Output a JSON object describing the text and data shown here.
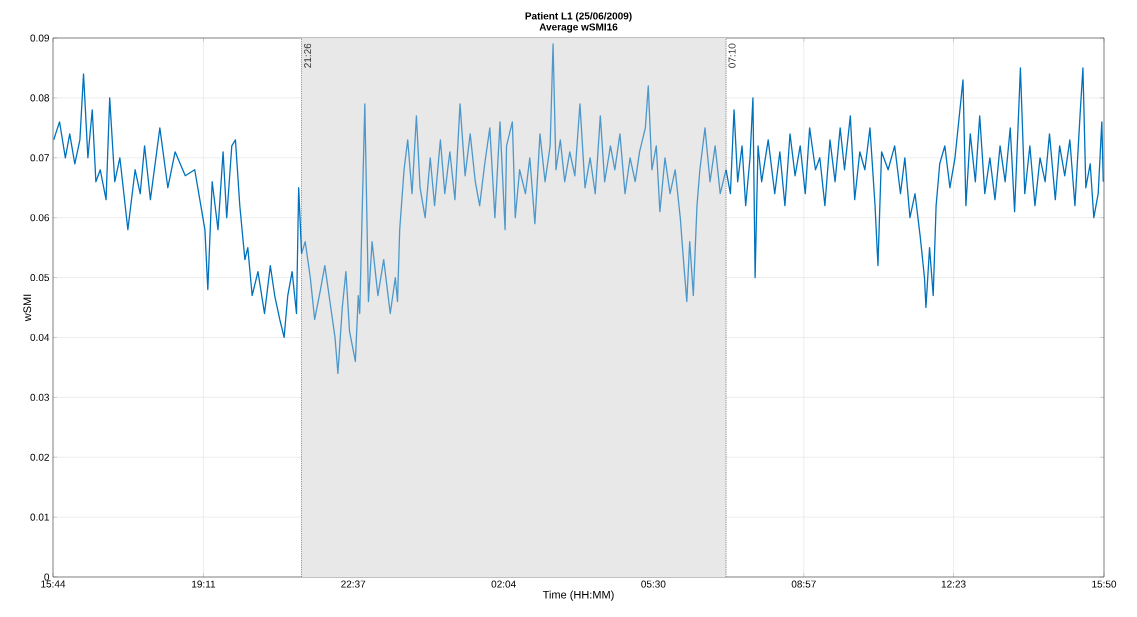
{
  "chart_data": {
    "type": "line",
    "title": "Patient L1 (25/06/2009)",
    "subtitle": "Average wSMI16",
    "xlabel": "Time (HH:MM)",
    "ylabel": "wSMI",
    "xlim": [
      "2009-06-25T15:44",
      "2009-06-26T15:50"
    ],
    "xticks": [
      {
        "value": "2009-06-25T15:44",
        "label": "15:44"
      },
      {
        "value": "2009-06-25T19:11",
        "label": "19:11"
      },
      {
        "value": "2009-06-25T22:37",
        "label": "22:37"
      },
      {
        "value": "2009-06-26T02:04",
        "label": "02:04"
      },
      {
        "value": "2009-06-26T05:30",
        "label": "05:30"
      },
      {
        "value": "2009-06-26T08:57",
        "label": "08:57"
      },
      {
        "value": "2009-06-26T12:23",
        "label": "12:23"
      },
      {
        "value": "2009-06-26T15:50",
        "label": "15:50"
      }
    ],
    "ylim": [
      0,
      0.09
    ],
    "yticks": [
      0,
      0.01,
      0.02,
      0.03,
      0.04,
      0.05,
      0.06,
      0.07,
      0.08,
      0.09
    ],
    "grid": true,
    "bands": [
      {
        "axis": "x",
        "from": "2009-06-25T21:26",
        "to": "2009-06-26T07:10",
        "color": "#e8e8e8"
      }
    ],
    "ref_lines": [
      {
        "axis": "x",
        "value": "2009-06-25T21:26",
        "label": "21:26",
        "color": "#555555",
        "line_style": "dotted"
      },
      {
        "axis": "x",
        "value": "2009-06-26T07:10",
        "label": "07:10",
        "color": "#555555",
        "line_style": "dotted"
      }
    ],
    "series": [
      {
        "color": "#0072bd",
        "x": [
          "2009-06-25T15:45",
          "2009-06-25T15:53",
          "2009-06-25T16:01",
          "2009-06-25T16:07",
          "2009-06-25T16:14",
          "2009-06-25T16:21",
          "2009-06-25T16:26",
          "2009-06-25T16:32",
          "2009-06-25T16:38",
          "2009-06-25T16:43",
          "2009-06-25T16:49",
          "2009-06-25T16:57",
          "2009-06-25T17:02",
          "2009-06-25T17:09",
          "2009-06-25T17:16",
          "2009-06-25T17:27",
          "2009-06-25T17:37",
          "2009-06-25T17:44",
          "2009-06-25T17:50",
          "2009-06-25T17:58",
          "2009-06-25T18:11",
          "2009-06-25T18:22",
          "2009-06-25T18:32",
          "2009-06-25T18:46",
          "2009-06-25T18:59",
          "2009-06-25T19:06",
          "2009-06-25T19:13",
          "2009-06-25T19:17",
          "2009-06-25T19:23",
          "2009-06-25T19:31",
          "2009-06-25T19:38",
          "2009-06-25T19:43",
          "2009-06-25T19:50",
          "2009-06-25T19:55",
          "2009-06-25T20:01",
          "2009-06-25T20:08",
          "2009-06-25T20:12",
          "2009-06-25T20:18",
          "2009-06-25T20:26",
          "2009-06-25T20:35",
          "2009-06-25T20:43",
          "2009-06-25T20:49",
          "2009-06-25T20:56",
          "2009-06-25T21:02",
          "2009-06-25T21:07",
          "2009-06-25T21:13",
          "2009-06-25T21:19",
          "2009-06-25T21:22",
          "2009-06-25T21:26"
        ],
        "values": [
          0.073,
          0.076,
          0.07,
          0.074,
          0.069,
          0.073,
          0.084,
          0.07,
          0.078,
          0.066,
          0.068,
          0.063,
          0.08,
          0.066,
          0.07,
          0.058,
          0.068,
          0.064,
          0.072,
          0.063,
          0.075,
          0.065,
          0.071,
          0.067,
          0.068,
          0.063,
          0.058,
          0.048,
          0.066,
          0.058,
          0.071,
          0.06,
          0.072,
          0.073,
          0.062,
          0.053,
          0.055,
          0.047,
          0.051,
          0.044,
          0.052,
          0.047,
          0.043,
          0.04,
          0.047,
          0.051,
          0.044,
          0.065,
          0.054
        ]
      },
      {
        "color": "#4d98cb",
        "x": [
          "2009-06-25T21:26",
          "2009-06-25T21:31",
          "2009-06-25T21:38",
          "2009-06-25T21:44",
          "2009-06-25T21:52",
          "2009-06-25T21:58",
          "2009-06-25T22:05",
          "2009-06-25T22:12",
          "2009-06-25T22:16",
          "2009-06-25T22:22",
          "2009-06-25T22:27",
          "2009-06-25T22:32",
          "2009-06-25T22:40",
          "2009-06-25T22:44",
          "2009-06-25T22:46",
          "2009-06-25T22:53",
          "2009-06-25T22:58",
          "2009-06-25T23:03",
          "2009-06-25T23:11",
          "2009-06-25T23:19",
          "2009-06-25T23:28",
          "2009-06-25T23:35",
          "2009-06-25T23:38",
          "2009-06-25T23:41",
          "2009-06-25T23:47",
          "2009-06-25T23:52",
          "2009-06-25T23:58",
          "2009-06-26T00:04",
          "2009-06-26T00:09",
          "2009-06-26T00:16",
          "2009-06-26T00:23",
          "2009-06-26T00:29",
          "2009-06-26T00:37",
          "2009-06-26T00:43",
          "2009-06-26T00:50",
          "2009-06-26T00:57",
          "2009-06-26T01:04",
          "2009-06-26T01:11",
          "2009-06-26T01:18",
          "2009-06-26T01:25",
          "2009-06-26T01:31",
          "2009-06-26T01:38",
          "2009-06-26T01:45",
          "2009-06-26T01:52",
          "2009-06-26T01:59",
          "2009-06-26T02:06",
          "2009-06-26T02:08",
          "2009-06-26T02:16",
          "2009-06-26T02:20",
          "2009-06-26T02:26",
          "2009-06-26T02:34",
          "2009-06-26T02:40",
          "2009-06-26T02:47",
          "2009-06-26T02:54",
          "2009-06-26T03:01",
          "2009-06-26T03:08",
          "2009-06-26T03:12",
          "2009-06-26T03:16",
          "2009-06-26T03:22",
          "2009-06-26T03:28",
          "2009-06-26T03:35",
          "2009-06-26T03:42",
          "2009-06-26T03:49",
          "2009-06-26T03:56",
          "2009-06-26T04:03",
          "2009-06-26T04:10",
          "2009-06-26T04:17",
          "2009-06-26T04:23",
          "2009-06-26T04:31",
          "2009-06-26T04:37",
          "2009-06-26T04:44",
          "2009-06-26T04:51",
          "2009-06-26T04:58",
          "2009-06-26T05:05",
          "2009-06-26T05:11",
          "2009-06-26T05:19",
          "2009-06-26T05:23",
          "2009-06-26T05:28",
          "2009-06-26T05:34",
          "2009-06-26T05:39",
          "2009-06-26T05:46",
          "2009-06-26T05:53",
          "2009-06-26T06:00",
          "2009-06-26T06:07",
          "2009-06-26T06:12",
          "2009-06-26T06:16",
          "2009-06-26T06:20",
          "2009-06-26T06:25",
          "2009-06-26T06:30",
          "2009-06-26T06:34",
          "2009-06-26T06:41",
          "2009-06-26T06:48",
          "2009-06-26T06:55",
          "2009-06-26T07:02",
          "2009-06-26T07:10"
        ],
        "values": [
          0.054,
          0.056,
          0.05,
          0.043,
          0.048,
          0.052,
          0.046,
          0.04,
          0.034,
          0.045,
          0.051,
          0.041,
          0.036,
          0.047,
          0.044,
          0.079,
          0.046,
          0.056,
          0.047,
          0.053,
          0.044,
          0.05,
          0.046,
          0.058,
          0.068,
          0.073,
          0.064,
          0.077,
          0.065,
          0.06,
          0.07,
          0.062,
          0.073,
          0.064,
          0.071,
          0.063,
          0.079,
          0.067,
          0.074,
          0.066,
          0.062,
          0.069,
          0.075,
          0.06,
          0.076,
          0.058,
          0.072,
          0.076,
          0.06,
          0.068,
          0.064,
          0.07,
          0.059,
          0.074,
          0.066,
          0.072,
          0.089,
          0.068,
          0.073,
          0.066,
          0.071,
          0.067,
          0.079,
          0.065,
          0.07,
          0.064,
          0.077,
          0.066,
          0.072,
          0.068,
          0.074,
          0.064,
          0.07,
          0.066,
          0.071,
          0.075,
          0.082,
          0.068,
          0.072,
          0.061,
          0.07,
          0.064,
          0.068,
          0.06,
          0.052,
          0.046,
          0.056,
          0.047,
          0.062,
          0.068,
          0.075,
          0.066,
          0.072,
          0.064,
          0.068
        ]
      },
      {
        "color": "#0072bd",
        "x": [
          "2009-06-26T07:10",
          "2009-06-26T07:16",
          "2009-06-26T07:21",
          "2009-06-26T07:26",
          "2009-06-26T07:32",
          "2009-06-26T07:37",
          "2009-06-26T07:43",
          "2009-06-26T07:47",
          "2009-06-26T07:50",
          "2009-06-26T07:54",
          "2009-06-26T07:59",
          "2009-06-26T08:08",
          "2009-06-26T08:17",
          "2009-06-26T08:24",
          "2009-06-26T08:31",
          "2009-06-26T08:38",
          "2009-06-26T08:45",
          "2009-06-26T08:52",
          "2009-06-26T08:59",
          "2009-06-26T09:05",
          "2009-06-26T09:13",
          "2009-06-26T09:19",
          "2009-06-26T09:26",
          "2009-06-26T09:33",
          "2009-06-26T09:40",
          "2009-06-26T09:47",
          "2009-06-26T09:53",
          "2009-06-26T10:01",
          "2009-06-26T10:07",
          "2009-06-26T10:14",
          "2009-06-26T10:21",
          "2009-06-26T10:28",
          "2009-06-26T10:35",
          "2009-06-26T10:39",
          "2009-06-26T10:44",
          "2009-06-26T10:53",
          "2009-06-26T11:02",
          "2009-06-26T11:10",
          "2009-06-26T11:16",
          "2009-06-26T11:23",
          "2009-06-26T11:30",
          "2009-06-26T11:37",
          "2009-06-26T11:43",
          "2009-06-26T11:45",
          "2009-06-26T11:50",
          "2009-06-26T11:55",
          "2009-06-26T11:59",
          "2009-06-26T12:04",
          "2009-06-26T12:11",
          "2009-06-26T12:18",
          "2009-06-26T12:25",
          "2009-06-26T12:36",
          "2009-06-26T12:40",
          "2009-06-26T12:46",
          "2009-06-26T12:53",
          "2009-06-26T12:59",
          "2009-06-26T13:06",
          "2009-06-26T13:13",
          "2009-06-26T13:20",
          "2009-06-26T13:27",
          "2009-06-26T13:34",
          "2009-06-26T13:41",
          "2009-06-26T13:47",
          "2009-06-26T13:55",
          "2009-06-26T14:01",
          "2009-06-26T14:08",
          "2009-06-26T14:15",
          "2009-06-26T14:22",
          "2009-06-26T14:29",
          "2009-06-26T14:35",
          "2009-06-26T14:43",
          "2009-06-26T14:49",
          "2009-06-26T14:56",
          "2009-06-26T15:03",
          "2009-06-26T15:10",
          "2009-06-26T15:17",
          "2009-06-26T15:21",
          "2009-06-26T15:25",
          "2009-06-26T15:31",
          "2009-06-26T15:36",
          "2009-06-26T15:42",
          "2009-06-26T15:47",
          "2009-06-26T15:49"
        ],
        "values": [
          0.068,
          0.064,
          0.078,
          0.066,
          0.072,
          0.062,
          0.07,
          0.08,
          0.05,
          0.072,
          0.066,
          0.073,
          0.064,
          0.071,
          0.062,
          0.074,
          0.067,
          0.072,
          0.064,
          0.075,
          0.068,
          0.07,
          0.062,
          0.073,
          0.066,
          0.075,
          0.068,
          0.077,
          0.063,
          0.071,
          0.068,
          0.075,
          0.062,
          0.052,
          0.071,
          0.068,
          0.072,
          0.064,
          0.07,
          0.06,
          0.064,
          0.057,
          0.05,
          0.045,
          0.055,
          0.047,
          0.062,
          0.069,
          0.072,
          0.065,
          0.07,
          0.083,
          0.062,
          0.074,
          0.066,
          0.077,
          0.064,
          0.07,
          0.063,
          0.072,
          0.066,
          0.075,
          0.061,
          0.085,
          0.064,
          0.072,
          0.062,
          0.07,
          0.066,
          0.074,
          0.063,
          0.072,
          0.067,
          0.073,
          0.062,
          0.077,
          0.085,
          0.065,
          0.069,
          0.06,
          0.064,
          0.076,
          0.066
        ]
      }
    ]
  }
}
